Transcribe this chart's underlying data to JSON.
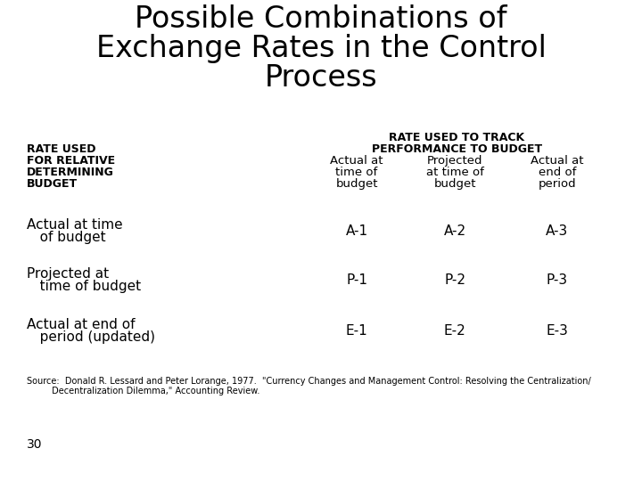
{
  "title_lines": [
    "Possible Combinations of",
    "Exchange Rates in the Control",
    "Process"
  ],
  "title_fontsize": 24,
  "bg_color": "#ffffff",
  "text_color": "#000000",
  "header_row1": "RATE USED TO TRACK",
  "header_row2": "PERFORMANCE TO BUDGET",
  "col_headers": [
    [
      "Actual at",
      "time of",
      "budget"
    ],
    [
      "Projected",
      "at time of",
      "budget"
    ],
    [
      "Actual at",
      "end of",
      "period"
    ]
  ],
  "row_label_header": [
    "RATE USED",
    "FOR RELATIVE",
    "DETERMINING",
    "BUDGET"
  ],
  "rows": [
    {
      "label_lines": [
        "Actual at time",
        "   of budget"
      ],
      "values": [
        "A-1",
        "A-2",
        "A-3"
      ]
    },
    {
      "label_lines": [
        "Projected at",
        "   time of budget"
      ],
      "values": [
        "P-1",
        "P-2",
        "P-3"
      ]
    },
    {
      "label_lines": [
        "Actual at end of",
        "   period (updated)"
      ],
      "values": [
        "E-1",
        "E-2",
        "E-3"
      ]
    }
  ],
  "source_line1": "Source:  Donald R. Lessard and Peter Lorange, 1977.  \"Currency Changes and Management Control: Resolving the Centralization/",
  "source_line2": "         Decentralization Dilemma,\" Accounting Review.",
  "page_number": "30",
  "source_fontsize": 7,
  "page_fontsize": 10,
  "label_header_fontsize": 9,
  "col_header_fontsize": 9.5,
  "row_label_fontsize": 11,
  "row_value_fontsize": 11,
  "header_bold_fontsize": 9
}
